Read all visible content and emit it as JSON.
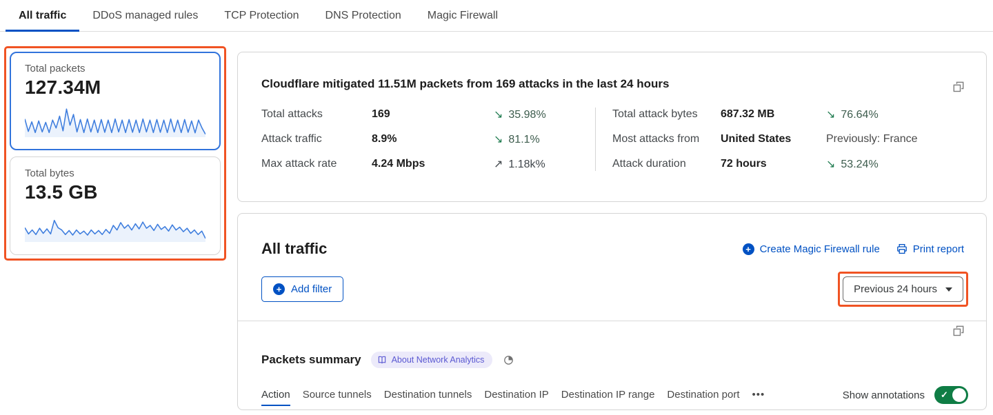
{
  "top_tabs": [
    {
      "label": "All traffic",
      "active": true
    },
    {
      "label": "DDoS managed rules",
      "active": false
    },
    {
      "label": "TCP Protection",
      "active": false
    },
    {
      "label": "DNS Protection",
      "active": false
    },
    {
      "label": "Magic Firewall",
      "active": false
    }
  ],
  "sidebar": {
    "packets_card": {
      "label": "Total packets",
      "value": "127.34M",
      "sparkline": [
        62,
        18,
        52,
        14,
        55,
        16,
        50,
        14,
        58,
        30,
        72,
        20,
        97,
        40,
        78,
        16,
        60,
        14,
        62,
        16,
        58,
        14,
        60,
        15,
        58,
        14,
        62,
        16,
        58,
        14,
        60,
        15,
        58,
        14,
        62,
        16,
        58,
        14,
        60,
        15,
        58,
        14,
        62,
        16,
        58,
        14,
        60,
        15,
        55,
        13,
        58,
        30,
        8
      ]
    },
    "bytes_card": {
      "label": "Total bytes",
      "value": "13.5 GB",
      "sparkline": [
        48,
        26,
        40,
        24,
        46,
        28,
        44,
        26,
        74,
        48,
        40,
        24,
        38,
        22,
        40,
        26,
        36,
        22,
        40,
        26,
        38,
        24,
        42,
        28,
        56,
        40,
        66,
        46,
        58,
        40,
        62,
        44,
        68,
        46,
        56,
        38,
        60,
        42,
        52,
        36,
        58,
        40,
        50,
        34,
        46,
        28,
        40,
        24,
        36,
        10
      ]
    }
  },
  "summary": {
    "title": "Cloudflare mitigated 11.51M packets from 169 attacks in the last 24 hours",
    "left_stats": [
      {
        "label": "Total attacks",
        "value": "169",
        "arrow": "↘",
        "delta": "35.98%",
        "direction": "down"
      },
      {
        "label": "Attack traffic",
        "value": "8.9%",
        "arrow": "↘",
        "delta": "81.1%",
        "direction": "down"
      },
      {
        "label": "Max attack rate",
        "value": "4.24 Mbps",
        "arrow": "↗",
        "delta": "1.18k%",
        "direction": "up"
      }
    ],
    "right_stats": [
      {
        "label": "Total attack bytes",
        "value": "687.32 MB",
        "arrow": "↘",
        "delta": "76.64%",
        "direction": "down"
      },
      {
        "label": "Most attacks from",
        "value": "United States",
        "arrow": "",
        "delta": "Previously: France",
        "direction": "neutral"
      },
      {
        "label": "Attack duration",
        "value": "72 hours",
        "arrow": "↘",
        "delta": "53.24%",
        "direction": "down"
      }
    ]
  },
  "traffic_section": {
    "title": "All traffic",
    "create_rule_link": "Create Magic Firewall rule",
    "print_report_link": "Print report",
    "add_filter_label": "Add filter",
    "time_range_label": "Previous 24 hours"
  },
  "packets_summary": {
    "title": "Packets summary",
    "badge_label": "About Network Analytics",
    "tabs": [
      {
        "label": "Action",
        "active": true
      },
      {
        "label": "Source tunnels",
        "active": false
      },
      {
        "label": "Destination tunnels",
        "active": false
      },
      {
        "label": "Destination IP",
        "active": false
      },
      {
        "label": "Destination IP range",
        "active": false
      },
      {
        "label": "Destination port",
        "active": false
      }
    ],
    "more_tabs": "•••",
    "show_annotations_label": "Show annotations",
    "annotations_on": true
  },
  "icons": {
    "copy-icon": "overlapping squares",
    "plus-icon": "+",
    "printer-icon": "printer outline",
    "book-icon": "open book",
    "history-icon": "quarter-filled clock",
    "caret-down-icon": "▼",
    "check-icon": "✓",
    "more-icon": "•••"
  },
  "colors": {
    "accent_blue": "#0051c3",
    "highlight_orange": "#f05323",
    "selected_card_blue": "#3173dc",
    "sparkline_blue": "#3f7ede",
    "positive_green": "#1e7b4f",
    "toggle_green": "#0f7d45",
    "badge_purple": "#5a58d2",
    "badge_bg": "#eceafa"
  }
}
